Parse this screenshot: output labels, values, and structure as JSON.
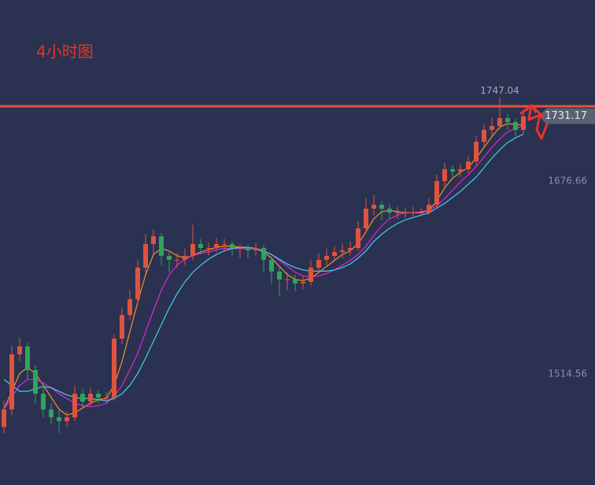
{
  "chart_data": {
    "type": "candlestick",
    "title": "4小时图",
    "open": [
      1470.0,
      1484.8,
      1531.1,
      1537.7,
      1517.9,
      1498.0,
      1484.8,
      1478.2,
      1474.9,
      1478.2,
      1498.0,
      1491.4,
      1498.0,
      1494.7,
      1494.7,
      1544.3,
      1564.2,
      1577.4,
      1603.9,
      1623.7,
      1630.3,
      1613.8,
      1610.5,
      1610.5,
      1613.8,
      1623.7,
      1620.4,
      1620.4,
      1623.7,
      1623.7,
      1620.4,
      1620.4,
      1618.4,
      1620.4,
      1610.5,
      1600.6,
      1594.0,
      1594.0,
      1590.7,
      1592.0,
      1603.9,
      1610.5,
      1613.8,
      1617.1,
      1618.4,
      1620.4,
      1637.0,
      1653.5,
      1656.8,
      1653.5,
      1650.2,
      1650.2,
      1650.2,
      1650.2,
      1650.2,
      1656.8,
      1676.7,
      1686.6,
      1684.6,
      1686.6,
      1693.2,
      1709.7,
      1719.7,
      1723.0,
      1729.6,
      1726.3,
      1719.7
    ],
    "high": [
      1492,
      1538,
      1545,
      1541,
      1522,
      1503,
      1490,
      1484,
      1483,
      1505,
      1502,
      1503,
      1501,
      1499,
      1548,
      1570,
      1585,
      1610,
      1632,
      1636,
      1633,
      1618,
      1616,
      1620,
      1640,
      1628,
      1625,
      1629,
      1628,
      1626,
      1624,
      1623,
      1625,
      1623,
      1613,
      1604,
      1600,
      1598,
      1597,
      1610,
      1616,
      1620,
      1622,
      1624,
      1626,
      1643,
      1662,
      1665,
      1660,
      1657,
      1655,
      1654,
      1655,
      1654,
      1662,
      1682,
      1692,
      1690,
      1691,
      1698,
      1715,
      1724,
      1730,
      1747.04,
      1733,
      1729,
      1735
    ],
    "low": [
      1465,
      1480,
      1525,
      1510,
      1490,
      1478,
      1472,
      1465,
      1470,
      1475,
      1486,
      1488,
      1490,
      1490,
      1492,
      1540,
      1560,
      1574,
      1600,
      1615,
      1606,
      1600,
      1604,
      1606,
      1610,
      1615,
      1614,
      1617,
      1618,
      1614,
      1612,
      1612,
      1614,
      1600,
      1590,
      1580,
      1585,
      1584,
      1586,
      1589,
      1600,
      1606,
      1610,
      1612,
      1614,
      1618,
      1633,
      1648,
      1644,
      1645,
      1645,
      1646,
      1646,
      1647,
      1648,
      1654,
      1672,
      1680,
      1680,
      1683,
      1690,
      1706,
      1715,
      1720,
      1720,
      1714,
      1716
    ],
    "close": [
      1484.8,
      1531.1,
      1537.7,
      1517.9,
      1498.0,
      1484.8,
      1478.2,
      1474.9,
      1478.2,
      1498.0,
      1491.4,
      1498.0,
      1494.7,
      1494.7,
      1544.3,
      1564.2,
      1577.4,
      1603.9,
      1623.7,
      1630.3,
      1613.8,
      1610.5,
      1610.5,
      1613.8,
      1623.7,
      1620.4,
      1620.4,
      1623.7,
      1623.7,
      1620.4,
      1620.4,
      1618.4,
      1620.4,
      1610.5,
      1600.6,
      1594.0,
      1594.0,
      1590.7,
      1592.0,
      1603.9,
      1610.5,
      1613.8,
      1617.1,
      1618.4,
      1620.4,
      1637.0,
      1653.5,
      1656.8,
      1653.5,
      1650.2,
      1650.2,
      1650.2,
      1650.2,
      1650.2,
      1656.8,
      1676.7,
      1686.6,
      1684.6,
      1686.6,
      1693.2,
      1709.7,
      1719.7,
      1723.0,
      1729.6,
      1726.3,
      1719.7,
      1731.17
    ],
    "up_color": "#e0533f",
    "down_color": "#2fa55b",
    "series": [
      {
        "color": "#f0952a",
        "values": [
          1484.8,
          1500,
          1515,
          1520,
          1515,
          1505,
          1495,
          1485,
          1480,
          1482,
          1486,
          1490,
          1493,
          1494,
          1505,
          1525,
          1550,
          1575,
          1598,
          1615,
          1620,
          1618,
          1614,
          1612,
          1614,
          1617,
          1619,
          1621,
          1622,
          1622,
          1621,
          1620,
          1620,
          1617,
          1612,
          1605,
          1598,
          1594,
          1593,
          1595,
          1600,
          1605,
          1610,
          1615,
          1618,
          1624,
          1634,
          1645,
          1651,
          1652,
          1651,
          1650,
          1650,
          1650,
          1652,
          1660,
          1671,
          1679,
          1684,
          1688,
          1696,
          1705,
          1714,
          1722,
          1725,
          1724,
          1724
        ]
      },
      {
        "color": "#d928d6",
        "values": [
          1484.8,
          1495,
          1505,
          1510,
          1510,
          1507,
          1503,
          1498,
          1494,
          1490,
          1488,
          1487,
          1488,
          1490,
          1496,
          1505,
          1518,
          1532,
          1550,
          1568,
          1585,
          1598,
          1606,
          1611,
          1614,
          1616,
          1617,
          1619,
          1620,
          1620,
          1620,
          1620,
          1620,
          1618,
          1615,
          1610,
          1605,
          1600,
          1597,
          1596,
          1597,
          1599,
          1602,
          1606,
          1610,
          1615,
          1622,
          1631,
          1639,
          1645,
          1648,
          1650,
          1650,
          1651,
          1652,
          1656,
          1662,
          1669,
          1676,
          1682,
          1689,
          1697,
          1705,
          1712,
          1718,
          1721,
          1723
        ]
      },
      {
        "color": "#3fd0e6",
        "values": [
          1510,
          1505,
          1500,
          1500,
          1502,
          1504,
          1503,
          1500,
          1497,
          1495,
          1494,
          1494,
          1493,
          1492,
          1494,
          1498,
          1505,
          1515,
          1528,
          1542,
          1556,
          1570,
          1582,
          1592,
          1600,
          1606,
          1611,
          1615,
          1618,
          1620,
          1621,
          1621,
          1620,
          1618,
          1615,
          1611,
          1607,
          1604,
          1602,
          1601,
          1601,
          1601,
          1602,
          1604,
          1607,
          1612,
          1618,
          1626,
          1632,
          1637,
          1641,
          1644,
          1646,
          1648,
          1650,
          1654,
          1658,
          1663,
          1668,
          1674,
          1680,
          1688,
          1696,
          1703,
          1709,
          1713,
          1716
        ]
      }
    ],
    "ylim": [
      1421.3,
      1828.8
    ],
    "yticks": [
      1514.56,
      1676.66
    ],
    "hline": {
      "value": 1739.5,
      "color": "#e0553a"
    },
    "last_price": 1731.17
  }
}
